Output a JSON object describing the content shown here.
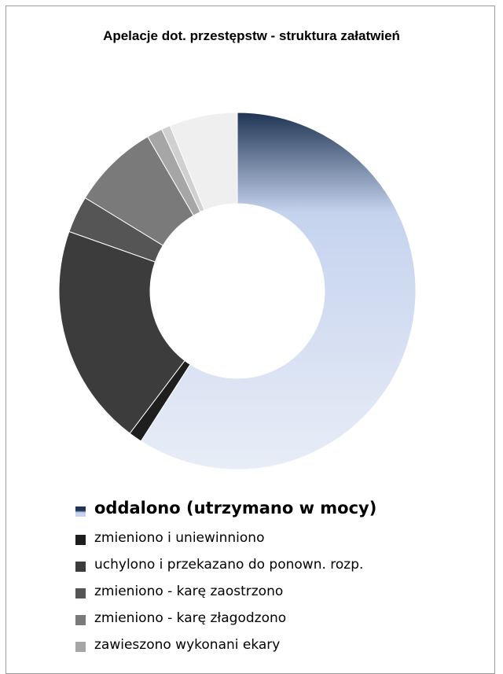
{
  "chart_data": {
    "type": "pie",
    "donut": true,
    "title": "Apelacje dot. przestępstw - struktura załatwień",
    "legend_position": "bottom",
    "categories": [
      "oddalono (utrzymano w mocy)",
      "zmieniono i uniewinniono",
      "uchylono i przekazano do ponown. rozp.",
      "zmieniono - karę zaostrzono",
      "zmieniono - karę złagodzono",
      "zawieszono wykonani ekary",
      "",
      ""
    ],
    "values": [
      58.5,
      1.2,
      19.9,
      3.3,
      7.8,
      1.4,
      0.8,
      6.1
    ],
    "colors": [
      "#c5d3ee",
      "#1e1e1e",
      "#3c3c3c",
      "#555555",
      "#7a7a7a",
      "#a6a6a6",
      "#d0d0d0",
      "#efefef"
    ],
    "gradient_first": [
      "#1f3553",
      "#c5d3ee",
      "#e8edf7"
    ]
  }
}
